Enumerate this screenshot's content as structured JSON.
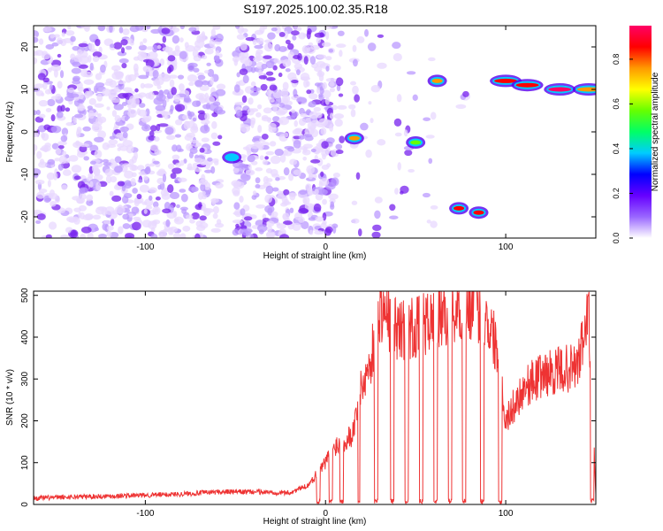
{
  "title": "S197.2025.100.02.35.R18",
  "chart_data": [
    {
      "type": "heatmap",
      "xlabel": "Height of straight line (km)",
      "ylabel": "Frequency (Hz)",
      "xlim": [
        -162,
        150
      ],
      "ylim": [
        -25,
        25
      ],
      "x_ticks": [
        -100,
        0,
        100
      ],
      "y_ticks": [
        -20,
        -10,
        0,
        10,
        20
      ],
      "grid": false,
      "colorbar": {
        "label": "Normalized spectral amplitude",
        "range": [
          0.0,
          0.95
        ],
        "ticks": [
          0.0,
          0.2,
          0.4,
          0.6,
          0.8
        ],
        "colormap": [
          "#ffffff",
          "#9966ff",
          "#6600ff",
          "#0000ff",
          "#00ccff",
          "#00ff66",
          "#66ff00",
          "#ffff00",
          "#ff9900",
          "#ff0000",
          "#ff0066"
        ]
      },
      "noise_region_x": [
        -162,
        4
      ],
      "blank_bands_x": [
        [
          -58,
          -50
        ],
        [
          10,
          14
        ],
        [
          32,
          36
        ],
        [
          52,
          56
        ],
        [
          64,
          72
        ],
        [
          88,
          94
        ]
      ],
      "features": [
        {
          "x": -52,
          "y": -6,
          "amplitude": 0.35
        },
        {
          "x": 16,
          "y": -1.5,
          "amplitude": 0.75
        },
        {
          "x": 50,
          "y": -2.5,
          "amplitude": 0.6
        },
        {
          "x": 62,
          "y": 12,
          "amplitude": 0.8
        },
        {
          "x": 74,
          "y": -18,
          "amplitude": 0.85
        },
        {
          "x": 85,
          "y": -19,
          "amplitude": 0.85
        },
        {
          "x": 100,
          "y": 12,
          "amplitude": 0.85
        },
        {
          "x": 112,
          "y": 11,
          "amplitude": 0.9
        },
        {
          "x": 130,
          "y": 10,
          "amplitude": 0.95
        },
        {
          "x": 146,
          "y": 10,
          "amplitude": 0.8
        }
      ]
    },
    {
      "type": "line",
      "xlabel": "Height of straight line (km)",
      "ylabel": "SNR (10 * v/v)",
      "xlim": [
        -162,
        150
      ],
      "ylim": [
        0,
        510
      ],
      "x_ticks": [
        -100,
        0,
        100
      ],
      "y_ticks": [
        0,
        100,
        200,
        300,
        400,
        500
      ],
      "grid": false,
      "color": "#ee3333",
      "series": [
        {
          "x": [
            -162,
            -140,
            -120,
            -100,
            -80,
            -60,
            -40,
            -20,
            -10,
            0,
            5,
            10,
            15,
            20,
            25,
            30,
            40,
            50,
            60,
            70,
            80,
            90,
            95,
            100,
            110,
            120,
            130,
            140,
            146,
            150
          ],
          "values": [
            15,
            18,
            20,
            22,
            25,
            30,
            30,
            28,
            45,
            100,
            140,
            150,
            170,
            280,
            340,
            470,
            420,
            420,
            440,
            460,
            480,
            440,
            380,
            200,
            280,
            310,
            320,
            330,
            460,
            20
          ]
        }
      ],
      "dropouts_x": [
        [
          -5,
          -3
        ],
        [
          2,
          4
        ],
        [
          8,
          10
        ],
        [
          18,
          19
        ],
        [
          27,
          29
        ],
        [
          36,
          38
        ],
        [
          44,
          46
        ],
        [
          52,
          54
        ],
        [
          60,
          62
        ],
        [
          68,
          70
        ],
        [
          76,
          78
        ],
        [
          86,
          88
        ],
        [
          96,
          98
        ],
        [
          147,
          149
        ]
      ]
    }
  ]
}
